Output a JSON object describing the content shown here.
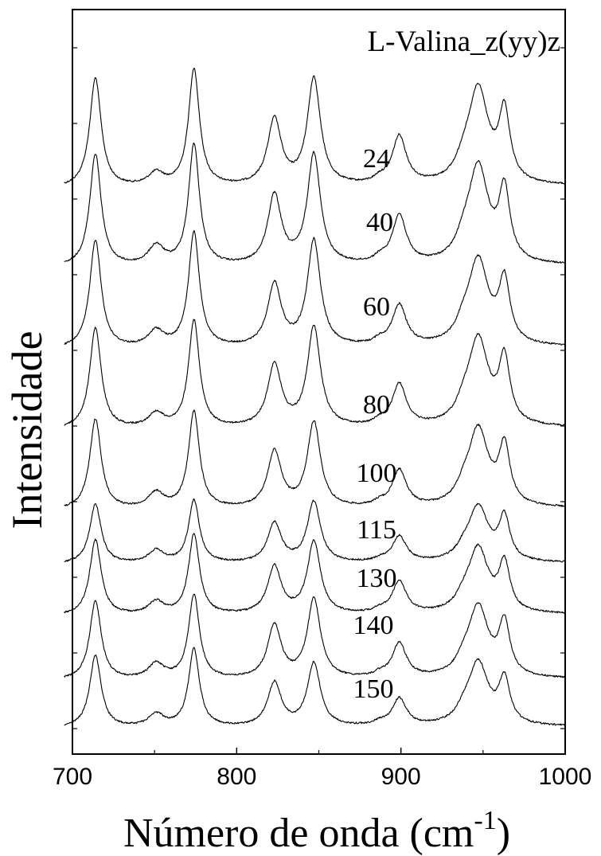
{
  "chart_data": {
    "type": "line",
    "title": "L-Valina_z(yy)z",
    "xlabel_main": "Número de onda (cm",
    "xlabel_sup": "-1",
    "xlabel_close": ")",
    "ylabel": "Intensidade",
    "xlim": [
      700,
      1000
    ],
    "x_ticks": [
      700,
      800,
      900,
      1000
    ],
    "x_tick_labels": [
      "700",
      "800",
      "900",
      "1000"
    ],
    "grid": false,
    "peaks_cm1": [
      714,
      751,
      774,
      823,
      847,
      899,
      947,
      963
    ],
    "series": [
      {
        "name": "24",
        "heights": [
          0.93,
          0.11,
          1.0,
          0.56,
          0.91,
          0.41,
          0.81,
          0.58
        ]
      },
      {
        "name": "40",
        "heights": [
          0.93,
          0.16,
          1.0,
          0.57,
          0.91,
          0.4,
          0.8,
          0.57
        ]
      },
      {
        "name": "60",
        "heights": [
          0.94,
          0.14,
          1.0,
          0.54,
          0.92,
          0.35,
          0.74,
          0.53
        ]
      },
      {
        "name": "80",
        "heights": [
          0.94,
          0.13,
          1.0,
          0.58,
          0.93,
          0.39,
          0.81,
          0.59
        ]
      },
      {
        "name": "100",
        "heights": [
          0.93,
          0.16,
          1.0,
          0.58,
          0.88,
          0.38,
          0.8,
          0.59
        ]
      },
      {
        "name": "115",
        "heights": [
          0.95,
          0.2,
          1.0,
          0.63,
          0.97,
          0.41,
          0.88,
          0.67
        ]
      },
      {
        "name": "130",
        "heights": [
          0.94,
          0.16,
          1.0,
          0.59,
          0.9,
          0.4,
          0.81,
          0.58
        ]
      },
      {
        "name": "140",
        "heights": [
          0.94,
          0.18,
          1.0,
          0.63,
          0.94,
          0.41,
          0.84,
          0.61
        ]
      },
      {
        "name": "150",
        "heights": [
          0.93,
          0.16,
          1.0,
          0.56,
          0.81,
          0.35,
          0.81,
          0.56
        ]
      }
    ]
  }
}
